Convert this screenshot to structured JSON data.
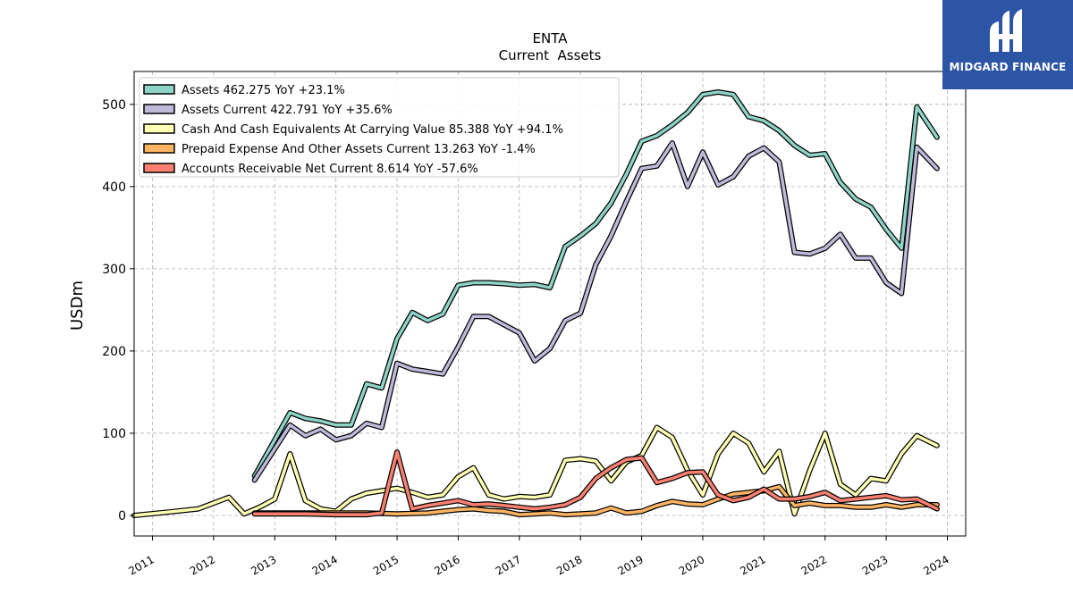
{
  "logo": {
    "text": "MIDGARD FINANCE",
    "bg_color": "#2c55a6"
  },
  "chart_data": {
    "type": "line",
    "title": "ENTA",
    "subtitle": "Current  Assets",
    "ylabel": "USDm",
    "xlabel": "",
    "xlim": [
      2010.7,
      2024.3
    ],
    "ylim": [
      -25,
      540
    ],
    "x_ticks": [
      2011,
      2012,
      2013,
      2014,
      2015,
      2016,
      2017,
      2018,
      2019,
      2020,
      2021,
      2022,
      2023,
      2024
    ],
    "y_ticks": [
      0,
      100,
      200,
      300,
      400,
      500
    ],
    "grid": true,
    "legend_position": "top-left",
    "series": [
      {
        "name": "Assets  462.275 YoY +23.1%",
        "color": "#8dd3c7",
        "points": [
          [
            2012.67,
            48
          ],
          [
            2013.25,
            125
          ],
          [
            2013.5,
            118
          ],
          [
            2013.75,
            115
          ],
          [
            2014.0,
            110
          ],
          [
            2014.25,
            110
          ],
          [
            2014.5,
            160
          ],
          [
            2014.75,
            155
          ],
          [
            2015.0,
            215
          ],
          [
            2015.25,
            247
          ],
          [
            2015.5,
            237
          ],
          [
            2015.75,
            245
          ],
          [
            2016.0,
            280
          ],
          [
            2016.25,
            283
          ],
          [
            2016.5,
            283
          ],
          [
            2016.75,
            282
          ],
          [
            2017.0,
            280
          ],
          [
            2017.25,
            281
          ],
          [
            2017.5,
            277
          ],
          [
            2017.75,
            327
          ],
          [
            2018.0,
            340
          ],
          [
            2018.25,
            355
          ],
          [
            2018.5,
            380
          ],
          [
            2018.75,
            415
          ],
          [
            2019.0,
            455
          ],
          [
            2019.25,
            462
          ],
          [
            2019.5,
            475
          ],
          [
            2019.75,
            490
          ],
          [
            2020.0,
            512
          ],
          [
            2020.25,
            515
          ],
          [
            2020.5,
            512
          ],
          [
            2020.75,
            485
          ],
          [
            2021.0,
            480
          ],
          [
            2021.25,
            468
          ],
          [
            2021.5,
            450
          ],
          [
            2021.75,
            438
          ],
          [
            2022.0,
            440
          ],
          [
            2022.25,
            405
          ],
          [
            2022.5,
            385
          ],
          [
            2022.75,
            375
          ],
          [
            2023.0,
            348
          ],
          [
            2023.25,
            325
          ],
          [
            2023.5,
            497
          ],
          [
            2023.83,
            460
          ]
        ]
      },
      {
        "name": "Assets Current  422.791 YoY +35.6%",
        "color": "#bebada",
        "points": [
          [
            2012.67,
            43
          ],
          [
            2013.25,
            110
          ],
          [
            2013.5,
            97
          ],
          [
            2013.75,
            105
          ],
          [
            2014.0,
            92
          ],
          [
            2014.25,
            97
          ],
          [
            2014.5,
            112
          ],
          [
            2014.75,
            107
          ],
          [
            2015.0,
            185
          ],
          [
            2015.25,
            178
          ],
          [
            2015.5,
            175
          ],
          [
            2015.75,
            172
          ],
          [
            2016.0,
            205
          ],
          [
            2016.25,
            242
          ],
          [
            2016.5,
            242
          ],
          [
            2016.75,
            232
          ],
          [
            2017.0,
            222
          ],
          [
            2017.25,
            188
          ],
          [
            2017.5,
            203
          ],
          [
            2017.75,
            237
          ],
          [
            2018.0,
            246
          ],
          [
            2018.25,
            305
          ],
          [
            2018.5,
            340
          ],
          [
            2018.75,
            382
          ],
          [
            2019.0,
            422
          ],
          [
            2019.25,
            425
          ],
          [
            2019.5,
            453
          ],
          [
            2019.75,
            400
          ],
          [
            2020.0,
            442
          ],
          [
            2020.25,
            402
          ],
          [
            2020.5,
            412
          ],
          [
            2020.75,
            437
          ],
          [
            2021.0,
            447
          ],
          [
            2021.25,
            430
          ],
          [
            2021.5,
            320
          ],
          [
            2021.75,
            318
          ],
          [
            2022.0,
            325
          ],
          [
            2022.25,
            342
          ],
          [
            2022.5,
            313
          ],
          [
            2022.75,
            313
          ],
          [
            2023.0,
            283
          ],
          [
            2023.25,
            270
          ],
          [
            2023.5,
            448
          ],
          [
            2023.83,
            422
          ]
        ]
      },
      {
        "name": "Cash And Cash Equivalents At Carrying Value  85.388 YoY +94.1%",
        "color": "#ffffb3",
        "points": [
          [
            2010.7,
            0
          ],
          [
            2011.25,
            4
          ],
          [
            2011.75,
            8
          ],
          [
            2012.0,
            15
          ],
          [
            2012.25,
            22
          ],
          [
            2012.5,
            2
          ],
          [
            2012.75,
            10
          ],
          [
            2013.0,
            20
          ],
          [
            2013.25,
            75
          ],
          [
            2013.5,
            18
          ],
          [
            2013.75,
            8
          ],
          [
            2014.0,
            5
          ],
          [
            2014.25,
            20
          ],
          [
            2014.5,
            27
          ],
          [
            2014.75,
            30
          ],
          [
            2015.0,
            33
          ],
          [
            2015.25,
            28
          ],
          [
            2015.5,
            22
          ],
          [
            2015.75,
            25
          ],
          [
            2016.0,
            47
          ],
          [
            2016.25,
            58
          ],
          [
            2016.5,
            25
          ],
          [
            2016.75,
            20
          ],
          [
            2017.0,
            23
          ],
          [
            2017.25,
            22
          ],
          [
            2017.5,
            25
          ],
          [
            2017.75,
            67
          ],
          [
            2018.0,
            69
          ],
          [
            2018.25,
            66
          ],
          [
            2018.5,
            42
          ],
          [
            2018.75,
            65
          ],
          [
            2019.0,
            73
          ],
          [
            2019.25,
            107
          ],
          [
            2019.5,
            95
          ],
          [
            2019.75,
            55
          ],
          [
            2020.0,
            25
          ],
          [
            2020.25,
            75
          ],
          [
            2020.5,
            100
          ],
          [
            2020.75,
            88
          ],
          [
            2021.0,
            53
          ],
          [
            2021.25,
            78
          ],
          [
            2021.5,
            2
          ],
          [
            2021.75,
            55
          ],
          [
            2022.0,
            100
          ],
          [
            2022.25,
            38
          ],
          [
            2022.5,
            25
          ],
          [
            2022.75,
            45
          ],
          [
            2023.0,
            42
          ],
          [
            2023.25,
            75
          ],
          [
            2023.5,
            97
          ],
          [
            2023.83,
            85
          ]
        ]
      },
      {
        "name": "Prepaid Expense And Other Assets Current  13.263 YoY -1.4%",
        "color": "#fdb462",
        "points": [
          [
            2012.67,
            3
          ],
          [
            2013.0,
            3
          ],
          [
            2013.5,
            3
          ],
          [
            2014.0,
            3
          ],
          [
            2014.5,
            3
          ],
          [
            2015.0,
            2
          ],
          [
            2015.5,
            3
          ],
          [
            2015.75,
            5
          ],
          [
            2016.0,
            7
          ],
          [
            2016.25,
            8
          ],
          [
            2016.5,
            6
          ],
          [
            2016.75,
            5
          ],
          [
            2017.0,
            1
          ],
          [
            2017.25,
            2
          ],
          [
            2017.5,
            3
          ],
          [
            2017.75,
            1
          ],
          [
            2018.0,
            2
          ],
          [
            2018.25,
            3
          ],
          [
            2018.5,
            9
          ],
          [
            2018.75,
            3
          ],
          [
            2019.0,
            5
          ],
          [
            2019.25,
            12
          ],
          [
            2019.5,
            17
          ],
          [
            2019.75,
            14
          ],
          [
            2020.0,
            13
          ],
          [
            2020.25,
            20
          ],
          [
            2020.5,
            26
          ],
          [
            2020.75,
            28
          ],
          [
            2021.0,
            30
          ],
          [
            2021.25,
            35
          ],
          [
            2021.5,
            12
          ],
          [
            2021.75,
            15
          ],
          [
            2022.0,
            12
          ],
          [
            2022.25,
            12
          ],
          [
            2022.5,
            10
          ],
          [
            2022.75,
            10
          ],
          [
            2023.0,
            13
          ],
          [
            2023.25,
            10
          ],
          [
            2023.5,
            13
          ],
          [
            2023.83,
            13
          ]
        ]
      },
      {
        "name": "Accounts Receivable Net Current  8.614 YoY -57.6%",
        "color": "#fb8072",
        "points": [
          [
            2012.67,
            2
          ],
          [
            2013.0,
            2
          ],
          [
            2013.5,
            2
          ],
          [
            2014.0,
            1
          ],
          [
            2014.5,
            1
          ],
          [
            2014.75,
            3
          ],
          [
            2015.0,
            77
          ],
          [
            2015.25,
            8
          ],
          [
            2015.5,
            12
          ],
          [
            2015.75,
            15
          ],
          [
            2016.0,
            18
          ],
          [
            2016.25,
            13
          ],
          [
            2016.5,
            14
          ],
          [
            2016.75,
            12
          ],
          [
            2017.0,
            10
          ],
          [
            2017.25,
            8
          ],
          [
            2017.5,
            10
          ],
          [
            2017.75,
            13
          ],
          [
            2018.0,
            22
          ],
          [
            2018.25,
            45
          ],
          [
            2018.5,
            58
          ],
          [
            2018.75,
            68
          ],
          [
            2019.0,
            70
          ],
          [
            2019.25,
            40
          ],
          [
            2019.5,
            45
          ],
          [
            2019.75,
            52
          ],
          [
            2020.0,
            53
          ],
          [
            2020.25,
            25
          ],
          [
            2020.5,
            18
          ],
          [
            2020.75,
            22
          ],
          [
            2021.0,
            32
          ],
          [
            2021.25,
            20
          ],
          [
            2021.5,
            20
          ],
          [
            2021.75,
            23
          ],
          [
            2022.0,
            28
          ],
          [
            2022.25,
            18
          ],
          [
            2022.5,
            20
          ],
          [
            2022.75,
            22
          ],
          [
            2023.0,
            24
          ],
          [
            2023.25,
            19
          ],
          [
            2023.5,
            20
          ],
          [
            2023.83,
            8
          ]
        ]
      }
    ]
  }
}
